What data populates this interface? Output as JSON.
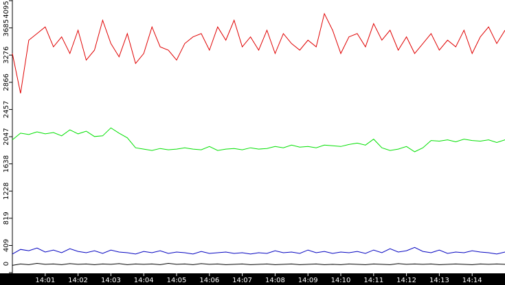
{
  "chart_data": {
    "type": "line",
    "x": [
      0,
      0.25,
      0.5,
      0.75,
      1,
      1.25,
      1.5,
      1.75,
      2,
      2.25,
      2.5,
      2.75,
      3,
      3.25,
      3.5,
      3.75,
      4,
      4.25,
      4.5,
      4.75,
      5,
      5.25,
      5.5,
      5.75,
      6,
      6.25,
      6.5,
      6.75,
      7,
      7.25,
      7.5,
      7.75,
      8,
      8.25,
      8.5,
      8.75,
      9,
      9.25,
      9.5,
      9.75,
      10,
      10.25,
      10.5,
      10.75,
      11,
      11.25,
      11.5,
      11.75,
      12,
      12.25,
      12.5,
      12.75,
      13,
      13.25,
      13.5,
      13.75,
      14,
      14.25,
      14.5,
      14.75,
      15
    ],
    "xlim": [
      0,
      15
    ],
    "xticks": [
      {
        "value": 1,
        "label": "14:01"
      },
      {
        "value": 2,
        "label": "14:02"
      },
      {
        "value": 3,
        "label": "14:03"
      },
      {
        "value": 4,
        "label": "14:04"
      },
      {
        "value": 5,
        "label": "14:05"
      },
      {
        "value": 6,
        "label": "14:06"
      },
      {
        "value": 7,
        "label": "14:07"
      },
      {
        "value": 8,
        "label": "14:08"
      },
      {
        "value": 9,
        "label": "14:09"
      },
      {
        "value": 10,
        "label": "14:10"
      },
      {
        "value": 11,
        "label": "14:11"
      },
      {
        "value": 12,
        "label": "14:12"
      },
      {
        "value": 13,
        "label": "14:13"
      },
      {
        "value": 14,
        "label": "14:14"
      }
    ],
    "ylim": [
      0,
      4095
    ],
    "yticks": [
      0,
      409,
      819,
      1228,
      1638,
      2047,
      2457,
      2866,
      3276,
      3685,
      4095
    ],
    "series": [
      {
        "color": "#e00000",
        "values": [
          3300,
          2700,
          3500,
          3600,
          3700,
          3400,
          3550,
          3300,
          3650,
          3200,
          3350,
          3800,
          3450,
          3250,
          3600,
          3150,
          3300,
          3700,
          3400,
          3350,
          3200,
          3450,
          3550,
          3600,
          3350,
          3700,
          3500,
          3800,
          3400,
          3550,
          3350,
          3650,
          3300,
          3600,
          3450,
          3350,
          3500,
          3400,
          3900,
          3650,
          3300,
          3550,
          3600,
          3400,
          3750,
          3500,
          3650,
          3350,
          3550,
          3300,
          3450,
          3600,
          3350,
          3500,
          3400,
          3650,
          3300,
          3550,
          3700,
          3450,
          3650
        ]
      },
      {
        "color": "#00e000",
        "values": [
          2000,
          2100,
          2080,
          2120,
          2090,
          2110,
          2060,
          2150,
          2090,
          2130,
          2050,
          2060,
          2180,
          2100,
          2030,
          1880,
          1860,
          1840,
          1870,
          1850,
          1860,
          1880,
          1860,
          1850,
          1900,
          1840,
          1860,
          1870,
          1850,
          1880,
          1860,
          1870,
          1900,
          1880,
          1920,
          1890,
          1900,
          1880,
          1920,
          1910,
          1900,
          1930,
          1950,
          1920,
          2010,
          1880,
          1840,
          1860,
          1900,
          1820,
          1880,
          1990,
          1980,
          2000,
          1970,
          2010,
          1990,
          1980,
          2000,
          1960,
          2000
        ]
      },
      {
        "color": "#0000c0",
        "values": [
          280,
          350,
          330,
          370,
          310,
          340,
          300,
          360,
          320,
          300,
          330,
          290,
          340,
          310,
          300,
          280,
          320,
          300,
          330,
          290,
          310,
          300,
          280,
          320,
          290,
          300,
          310,
          290,
          300,
          280,
          300,
          290,
          330,
          300,
          310,
          290,
          340,
          300,
          320,
          290,
          310,
          300,
          320,
          290,
          340,
          300,
          360,
          310,
          330,
          380,
          320,
          300,
          340,
          290,
          310,
          300,
          330,
          310,
          300,
          280,
          310
        ]
      },
      {
        "color": "#000000",
        "values": [
          110,
          130,
          120,
          140,
          125,
          130,
          120,
          135,
          125,
          130,
          120,
          130,
          125,
          135,
          120,
          130,
          125,
          130,
          120,
          140,
          125,
          130,
          120,
          135,
          125,
          130,
          120,
          125,
          130,
          120,
          125,
          130,
          120,
          125,
          130,
          120,
          125,
          130,
          120,
          125,
          120,
          130,
          125,
          120,
          130,
          125,
          120,
          135,
          125,
          130,
          125,
          130,
          120,
          125,
          130,
          125,
          120,
          130,
          125,
          130,
          125
        ]
      }
    ]
  }
}
